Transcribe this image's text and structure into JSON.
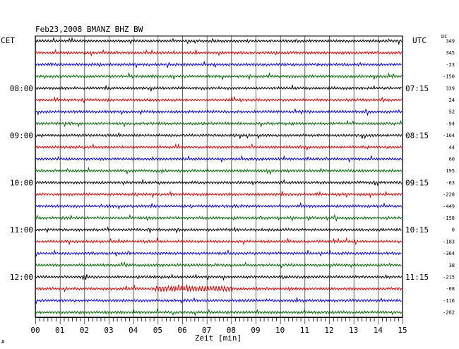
{
  "chart_data": {
    "type": "line",
    "title": "Feb23,2008   BMANZ BHZ BW",
    "left_axis_label": "CET",
    "right_axis_label": "UTC",
    "dc_label": "DC",
    "xlabel": "Zeit [min]",
    "x_ticks": [
      "00",
      "01",
      "02",
      "03",
      "04",
      "05",
      "06",
      "07",
      "08",
      "09",
      "10",
      "11",
      "12",
      "13",
      "14",
      "15"
    ],
    "xlim": [
      0,
      15
    ],
    "grid": true,
    "left_time_labels": [
      {
        "row": 4,
        "text": "08:00"
      },
      {
        "row": 8,
        "text": "09:00"
      },
      {
        "row": 12,
        "text": "10:00"
      },
      {
        "row": 16,
        "text": "11:00"
      },
      {
        "row": 20,
        "text": "12:00"
      }
    ],
    "right_time_labels": [
      {
        "row": 4,
        "text": "07:15"
      },
      {
        "row": 8,
        "text": "08:15"
      },
      {
        "row": 12,
        "text": "09:15"
      },
      {
        "row": 16,
        "text": "10:15"
      },
      {
        "row": 20,
        "text": "11:15"
      }
    ],
    "trace_colors": [
      "#000000",
      "#cc0000",
      "#0000cc",
      "#006400"
    ],
    "dc_offsets": [
      349,
      345,
      -23,
      -150,
      339,
      24,
      52,
      -94,
      -164,
      44,
      60,
      195,
      -63,
      -228,
      -449,
      -158,
      0,
      -183,
      -364,
      38,
      -215,
      -68,
      -116,
      -262
    ],
    "series_count": 24
  },
  "footer_mark": "#"
}
